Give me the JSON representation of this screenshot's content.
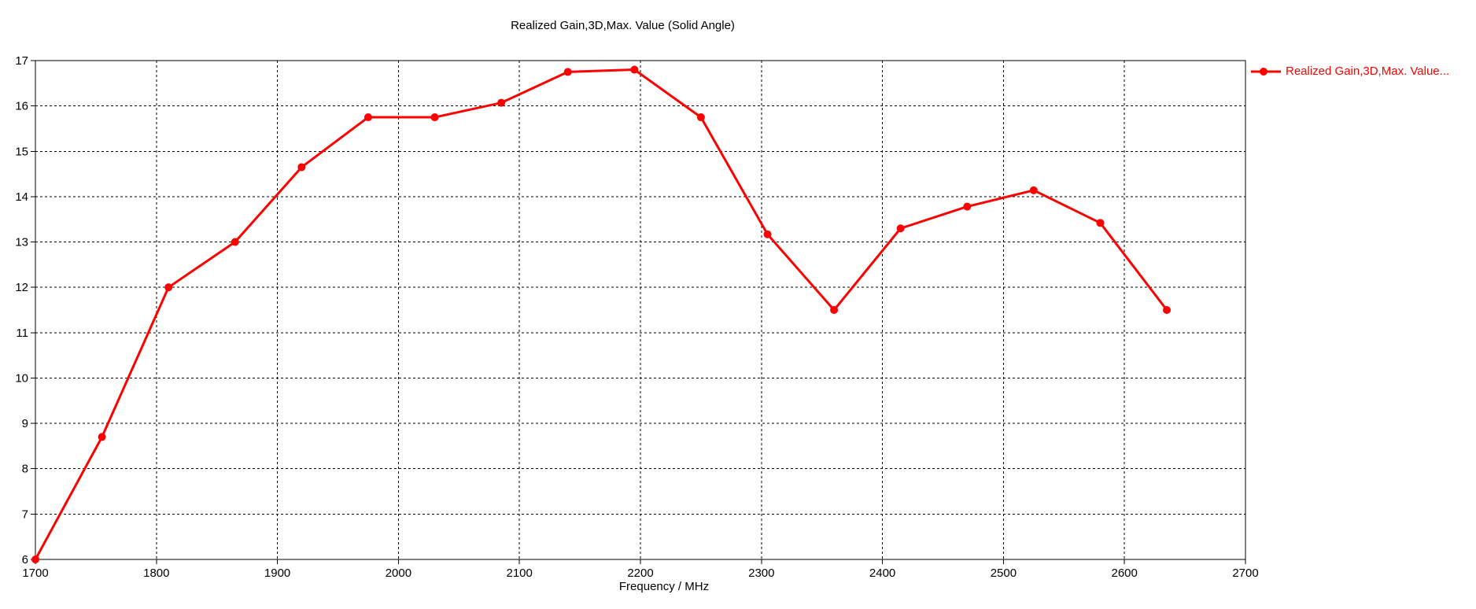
{
  "chart_data": {
    "type": "line",
    "title": "Realized Gain,3D,Max. Value (Solid Angle)",
    "xlabel": "Frequency / MHz",
    "ylabel": "",
    "xlim": [
      1700,
      2700
    ],
    "ylim": [
      6,
      17
    ],
    "xticks": [
      1700,
      1800,
      1900,
      2000,
      2100,
      2200,
      2300,
      2400,
      2500,
      2600,
      2700
    ],
    "yticks": [
      6,
      7,
      8,
      9,
      10,
      11,
      12,
      13,
      14,
      15,
      16,
      17
    ],
    "grid": "dashed",
    "legend_position": "top-right-outside",
    "legend": {
      "entries": [
        {
          "label": "Realized Gain,3D,Max. Value...",
          "color": "#ff0000",
          "marker": "circle"
        }
      ]
    },
    "series": [
      {
        "name": "Realized Gain,3D,Max. Value...",
        "color": "#ff0000",
        "marker": "circle",
        "x": [
          1700,
          1755,
          1810,
          1865,
          1920,
          1975,
          2030,
          2085,
          2140,
          2195,
          2250,
          2305,
          2360,
          2415,
          2470,
          2525,
          2580,
          2635
        ],
        "y": [
          6.0,
          8.7,
          12.0,
          13.0,
          14.65,
          15.75,
          15.75,
          16.07,
          16.75,
          16.8,
          15.75,
          13.17,
          11.5,
          13.3,
          13.78,
          14.14,
          13.42,
          11.5
        ]
      }
    ],
    "colors": {
      "axis": "#000000",
      "grid": "#000000",
      "text": "#000000",
      "background": "#ffffff"
    }
  }
}
